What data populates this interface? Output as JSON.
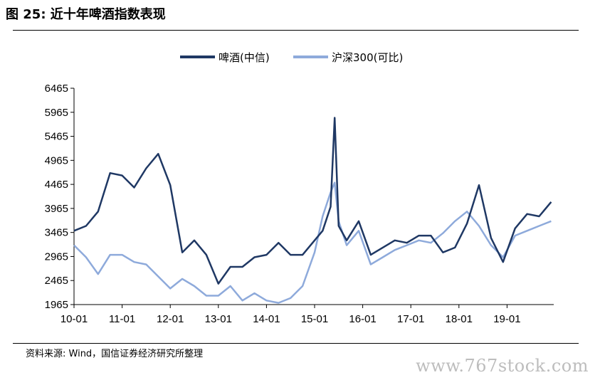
{
  "header": {
    "title": "图 25: 近十年啤酒指数表现"
  },
  "footer": {
    "source": "资料来源: Wind，国信证券经济研究所整理"
  },
  "watermark": "www.767stock.com",
  "chart_data": {
    "type": "line",
    "title": "",
    "xlabel": "",
    "ylabel": "",
    "ylim": [
      1965,
      6465
    ],
    "yticks": [
      "6465",
      "5965",
      "5465",
      "4965",
      "4465",
      "3965",
      "3465",
      "2965",
      "2465",
      "1965"
    ],
    "xticks": [
      "10-01",
      "11-01",
      "12-01",
      "13-01",
      "14-01",
      "15-01",
      "16-01",
      "17-01",
      "18-01",
      "19-01"
    ],
    "grid": false,
    "legend_position": "top-center",
    "series": [
      {
        "name": "啤酒(中信)",
        "color": "#1f3864",
        "x": [
          "10-01",
          "10-04",
          "10-07",
          "10-10",
          "11-01",
          "11-04",
          "11-07",
          "11-10",
          "12-01",
          "12-04",
          "12-07",
          "12-10",
          "13-01",
          "13-04",
          "13-07",
          "13-10",
          "14-01",
          "14-04",
          "14-07",
          "14-10",
          "15-01",
          "15-03",
          "15-05",
          "15-06",
          "15-07",
          "15-09",
          "15-12",
          "16-03",
          "16-06",
          "16-09",
          "16-12",
          "17-03",
          "17-06",
          "17-09",
          "17-12",
          "18-03",
          "18-06",
          "18-09",
          "18-12",
          "19-03",
          "19-06",
          "19-09",
          "19-12"
        ],
        "values": [
          3500,
          3600,
          3900,
          4700,
          4650,
          4400,
          4800,
          5100,
          4450,
          3050,
          3300,
          3000,
          2400,
          2750,
          2750,
          2950,
          3000,
          3250,
          3000,
          3000,
          3300,
          3500,
          4000,
          5850,
          3600,
          3300,
          3700,
          3000,
          3150,
          3300,
          3250,
          3400,
          3400,
          3050,
          3150,
          3650,
          4450,
          3350,
          2850,
          3550,
          3850,
          3800,
          4100
        ]
      },
      {
        "name": "沪深300(可比)",
        "color": "#8eaadb",
        "x": [
          "10-01",
          "10-04",
          "10-07",
          "10-10",
          "11-01",
          "11-04",
          "11-07",
          "11-10",
          "12-01",
          "12-04",
          "12-07",
          "12-10",
          "13-01",
          "13-04",
          "13-07",
          "13-10",
          "14-01",
          "14-04",
          "14-07",
          "14-10",
          "15-01",
          "15-03",
          "15-05",
          "15-06",
          "15-07",
          "15-09",
          "15-12",
          "16-03",
          "16-06",
          "16-09",
          "16-12",
          "17-03",
          "17-06",
          "17-09",
          "17-12",
          "18-03",
          "18-06",
          "18-09",
          "18-12",
          "19-03",
          "19-06",
          "19-09",
          "19-12"
        ],
        "values": [
          3200,
          2950,
          2600,
          3000,
          3000,
          2850,
          2800,
          2550,
          2300,
          2500,
          2350,
          2150,
          2150,
          2350,
          2050,
          2200,
          2050,
          2000,
          2100,
          2350,
          3050,
          3800,
          4300,
          4500,
          3700,
          3200,
          3500,
          2800,
          2950,
          3100,
          3200,
          3300,
          3250,
          3450,
          3700,
          3900,
          3600,
          3200,
          2950,
          3400,
          3500,
          3600,
          3700
        ]
      }
    ]
  }
}
